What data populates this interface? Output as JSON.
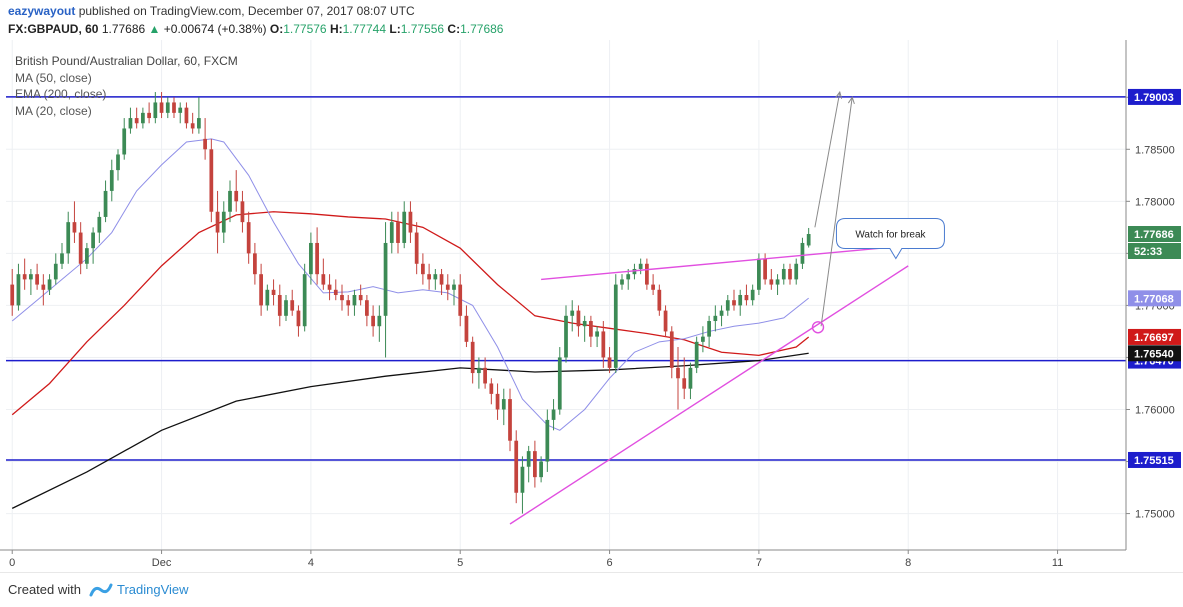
{
  "header": {
    "user": "eazywayout",
    "published": "published on TradingView.com, December 07, 2017 08:07 UTC",
    "symbol": "FX:GBPAUD, 60",
    "last": "1.77686",
    "change": "+0.00674 (+0.38%)",
    "o_label": "O:",
    "o_value": "1.77576",
    "h_label": "H:",
    "h_value": "1.77744",
    "l_label": "L:",
    "l_value": "1.77556",
    "c_label": "C:",
    "c_value": "1.77686"
  },
  "legend": {
    "title": "British Pound/Australian Dollar, 60, FXCM",
    "items": [
      "MA (50, close)",
      "EMA (200, close)",
      "MA (20, close)"
    ]
  },
  "annotation": {
    "label": "Watch for break"
  },
  "price_badges": {
    "current": "1.77686",
    "countdown": "52:33",
    "ma20": "1.77068",
    "ma50": "1.76697",
    "ema200": "1.76540"
  },
  "footer": {
    "created_with": "Created with",
    "brand": "TradingView"
  },
  "colors": {
    "up": "#3c8a55",
    "down": "#c4433d",
    "ma20": "#8f8fe8",
    "ma50": "#d01a1a",
    "ema200": "#111111",
    "hline": "#1d1dcc",
    "trend": "#e14fe0"
  },
  "chart_data": {
    "type": "candlestick",
    "ylim": [
      1.7465,
      1.7955
    ],
    "x_ticks": [
      {
        "label": "0",
        "x": 0
      },
      {
        "label": "Dec",
        "x": 24
      },
      {
        "label": "4",
        "x": 48
      },
      {
        "label": "5",
        "x": 72
      },
      {
        "label": "6",
        "x": 96
      },
      {
        "label": "7",
        "x": 120
      },
      {
        "label": "8",
        "x": 144
      },
      {
        "label": "11",
        "x": 168
      }
    ],
    "x_range": [
      -1,
      179
    ],
    "y_ticks": [
      "1.75000",
      "1.75500",
      "1.76000",
      "1.76500",
      "1.77000",
      "1.77500",
      "1.78000",
      "1.78500",
      "1.79000"
    ],
    "y_tick_values": [
      1.75,
      1.755,
      1.76,
      1.765,
      1.77,
      1.775,
      1.78,
      1.785,
      1.79
    ],
    "horizontal_levels": [
      {
        "value": 1.79003,
        "label": "1.79003"
      },
      {
        "value": 1.7647,
        "label": "1.76470"
      },
      {
        "value": 1.75515,
        "label": "1.75515"
      }
    ],
    "candles": [
      [
        0,
        1.772,
        1.7735,
        1.769,
        1.77
      ],
      [
        1,
        1.77,
        1.774,
        1.7695,
        1.773
      ],
      [
        2,
        1.773,
        1.7745,
        1.7715,
        1.7725
      ],
      [
        3,
        1.7725,
        1.7735,
        1.771,
        1.773
      ],
      [
        4,
        1.773,
        1.774,
        1.7715,
        1.772
      ],
      [
        5,
        1.772,
        1.773,
        1.77,
        1.7715
      ],
      [
        6,
        1.7715,
        1.773,
        1.771,
        1.7725
      ],
      [
        7,
        1.7725,
        1.775,
        1.772,
        1.774
      ],
      [
        8,
        1.774,
        1.776,
        1.7735,
        1.775
      ],
      [
        9,
        1.775,
        1.779,
        1.774,
        1.778
      ],
      [
        10,
        1.778,
        1.78,
        1.776,
        1.777
      ],
      [
        11,
        1.777,
        1.778,
        1.773,
        1.774
      ],
      [
        12,
        1.774,
        1.776,
        1.7735,
        1.7755
      ],
      [
        13,
        1.7755,
        1.7775,
        1.774,
        1.777
      ],
      [
        14,
        1.777,
        1.779,
        1.776,
        1.7785
      ],
      [
        15,
        1.7785,
        1.782,
        1.778,
        1.781
      ],
      [
        16,
        1.781,
        1.784,
        1.78,
        1.783
      ],
      [
        17,
        1.783,
        1.785,
        1.782,
        1.7845
      ],
      [
        18,
        1.7845,
        1.788,
        1.784,
        1.787
      ],
      [
        19,
        1.787,
        1.789,
        1.7865,
        1.788
      ],
      [
        20,
        1.788,
        1.789,
        1.787,
        1.7875
      ],
      [
        21,
        1.7875,
        1.789,
        1.787,
        1.7885
      ],
      [
        22,
        1.7885,
        1.7895,
        1.7875,
        1.788
      ],
      [
        23,
        1.788,
        1.7905,
        1.7875,
        1.7895
      ],
      [
        24,
        1.7895,
        1.7905,
        1.788,
        1.7885
      ],
      [
        25,
        1.7885,
        1.79,
        1.788,
        1.7895
      ],
      [
        26,
        1.7895,
        1.79,
        1.788,
        1.7885
      ],
      [
        27,
        1.7885,
        1.7895,
        1.7875,
        1.789
      ],
      [
        28,
        1.789,
        1.7895,
        1.787,
        1.7875
      ],
      [
        29,
        1.7875,
        1.7885,
        1.7865,
        1.787
      ],
      [
        30,
        1.787,
        1.79,
        1.7865,
        1.788
      ],
      [
        31,
        1.786,
        1.788,
        1.784,
        1.785
      ],
      [
        32,
        1.785,
        1.786,
        1.778,
        1.779
      ],
      [
        33,
        1.779,
        1.781,
        1.775,
        1.777
      ],
      [
        34,
        1.777,
        1.78,
        1.776,
        1.779
      ],
      [
        35,
        1.779,
        1.782,
        1.778,
        1.781
      ],
      [
        36,
        1.781,
        1.783,
        1.779,
        1.78
      ],
      [
        37,
        1.78,
        1.781,
        1.777,
        1.778
      ],
      [
        38,
        1.778,
        1.779,
        1.774,
        1.775
      ],
      [
        39,
        1.775,
        1.776,
        1.772,
        1.773
      ],
      [
        40,
        1.773,
        1.774,
        1.769,
        1.77
      ],
      [
        41,
        1.77,
        1.772,
        1.7695,
        1.7715
      ],
      [
        42,
        1.7715,
        1.7725,
        1.77,
        1.771
      ],
      [
        43,
        1.771,
        1.772,
        1.768,
        1.769
      ],
      [
        44,
        1.769,
        1.771,
        1.7685,
        1.7705
      ],
      [
        45,
        1.7705,
        1.7715,
        1.769,
        1.7695
      ],
      [
        46,
        1.7695,
        1.77,
        1.767,
        1.768
      ],
      [
        47,
        1.768,
        1.774,
        1.7675,
        1.773
      ],
      [
        48,
        1.773,
        1.777,
        1.772,
        1.776
      ],
      [
        49,
        1.776,
        1.7775,
        1.772,
        1.773
      ],
      [
        50,
        1.773,
        1.7745,
        1.7715,
        1.772
      ],
      [
        51,
        1.772,
        1.773,
        1.7705,
        1.7715
      ],
      [
        52,
        1.7715,
        1.7725,
        1.7705,
        1.771
      ],
      [
        53,
        1.771,
        1.772,
        1.7695,
        1.7705
      ],
      [
        54,
        1.7705,
        1.771,
        1.769,
        1.77
      ],
      [
        55,
        1.77,
        1.7715,
        1.769,
        1.771
      ],
      [
        56,
        1.771,
        1.772,
        1.77,
        1.7705
      ],
      [
        57,
        1.7705,
        1.771,
        1.768,
        1.769
      ],
      [
        58,
        1.769,
        1.77,
        1.767,
        1.768
      ],
      [
        59,
        1.768,
        1.77,
        1.7665,
        1.769
      ],
      [
        60,
        1.769,
        1.778,
        1.765,
        1.776
      ],
      [
        61,
        1.776,
        1.779,
        1.775,
        1.778
      ],
      [
        62,
        1.778,
        1.779,
        1.775,
        1.776
      ],
      [
        63,
        1.776,
        1.78,
        1.7755,
        1.779
      ],
      [
        64,
        1.779,
        1.78,
        1.776,
        1.777
      ],
      [
        65,
        1.777,
        1.778,
        1.773,
        1.774
      ],
      [
        66,
        1.774,
        1.775,
        1.772,
        1.773
      ],
      [
        67,
        1.773,
        1.774,
        1.7715,
        1.7725
      ],
      [
        68,
        1.7725,
        1.7735,
        1.7715,
        1.773
      ],
      [
        69,
        1.773,
        1.7735,
        1.771,
        1.772
      ],
      [
        70,
        1.772,
        1.773,
        1.7705,
        1.7715
      ],
      [
        71,
        1.7715,
        1.7725,
        1.77,
        1.772
      ],
      [
        72,
        1.772,
        1.773,
        1.768,
        1.769
      ],
      [
        73,
        1.769,
        1.77,
        1.766,
        1.7665
      ],
      [
        74,
        1.7665,
        1.767,
        1.7625,
        1.7635
      ],
      [
        75,
        1.7635,
        1.765,
        1.762,
        1.764
      ],
      [
        76,
        1.764,
        1.765,
        1.762,
        1.7625
      ],
      [
        77,
        1.7625,
        1.763,
        1.7605,
        1.7615
      ],
      [
        78,
        1.7615,
        1.7625,
        1.759,
        1.76
      ],
      [
        79,
        1.76,
        1.762,
        1.7585,
        1.761
      ],
      [
        80,
        1.761,
        1.762,
        1.756,
        1.757
      ],
      [
        81,
        1.757,
        1.758,
        1.751,
        1.752
      ],
      [
        82,
        1.752,
        1.7555,
        1.75,
        1.7545
      ],
      [
        83,
        1.7545,
        1.7565,
        1.753,
        1.756
      ],
      [
        84,
        1.756,
        1.757,
        1.7525,
        1.7535
      ],
      [
        85,
        1.7535,
        1.7555,
        1.753,
        1.755
      ],
      [
        86,
        1.755,
        1.76,
        1.754,
        1.759
      ],
      [
        87,
        1.759,
        1.761,
        1.758,
        1.76
      ],
      [
        88,
        1.76,
        1.766,
        1.7595,
        1.765
      ],
      [
        89,
        1.765,
        1.77,
        1.7645,
        1.769
      ],
      [
        90,
        1.769,
        1.7705,
        1.7675,
        1.7695
      ],
      [
        91,
        1.7695,
        1.77,
        1.767,
        1.768
      ],
      [
        92,
        1.768,
        1.769,
        1.7665,
        1.7685
      ],
      [
        93,
        1.7685,
        1.769,
        1.766,
        1.767
      ],
      [
        94,
        1.767,
        1.768,
        1.766,
        1.7675
      ],
      [
        95,
        1.7675,
        1.7685,
        1.764,
        1.765
      ],
      [
        96,
        1.765,
        1.766,
        1.7635,
        1.764
      ],
      [
        97,
        1.764,
        1.773,
        1.7635,
        1.772
      ],
      [
        98,
        1.772,
        1.773,
        1.7715,
        1.7725
      ],
      [
        99,
        1.7725,
        1.7735,
        1.7715,
        1.773
      ],
      [
        100,
        1.773,
        1.774,
        1.7725,
        1.7735
      ],
      [
        101,
        1.7735,
        1.7745,
        1.773,
        1.774
      ],
      [
        102,
        1.774,
        1.7745,
        1.7715,
        1.772
      ],
      [
        103,
        1.772,
        1.773,
        1.771,
        1.7715
      ],
      [
        104,
        1.7715,
        1.772,
        1.769,
        1.7695
      ],
      [
        105,
        1.7695,
        1.77,
        1.767,
        1.7675
      ],
      [
        106,
        1.7675,
        1.768,
        1.763,
        1.764
      ],
      [
        107,
        1.764,
        1.766,
        1.76,
        1.763
      ],
      [
        108,
        1.763,
        1.765,
        1.761,
        1.762
      ],
      [
        109,
        1.762,
        1.7645,
        1.761,
        1.764
      ],
      [
        110,
        1.764,
        1.767,
        1.7635,
        1.7665
      ],
      [
        111,
        1.7665,
        1.768,
        1.7655,
        1.767
      ],
      [
        112,
        1.767,
        1.769,
        1.766,
        1.7685
      ],
      [
        113,
        1.7685,
        1.77,
        1.7675,
        1.769
      ],
      [
        114,
        1.769,
        1.77,
        1.768,
        1.7695
      ],
      [
        115,
        1.7695,
        1.771,
        1.769,
        1.7705
      ],
      [
        116,
        1.7705,
        1.7715,
        1.7695,
        1.77
      ],
      [
        117,
        1.77,
        1.7715,
        1.769,
        1.771
      ],
      [
        118,
        1.771,
        1.772,
        1.77,
        1.7705
      ],
      [
        119,
        1.7705,
        1.772,
        1.77,
        1.7715
      ],
      [
        120,
        1.7715,
        1.775,
        1.771,
        1.7745
      ],
      [
        121,
        1.7745,
        1.775,
        1.772,
        1.7725
      ],
      [
        122,
        1.7725,
        1.7735,
        1.7715,
        1.772
      ],
      [
        123,
        1.772,
        1.773,
        1.771,
        1.7725
      ],
      [
        124,
        1.7725,
        1.774,
        1.772,
        1.7735
      ],
      [
        125,
        1.7735,
        1.774,
        1.772,
        1.7725
      ],
      [
        126,
        1.7725,
        1.7745,
        1.772,
        1.774
      ],
      [
        127,
        1.774,
        1.7765,
        1.7735,
        1.776
      ],
      [
        128,
        1.77576,
        1.77744,
        1.77556,
        1.77686
      ]
    ],
    "ma50": [
      [
        0,
        1.7595
      ],
      [
        6,
        1.7625
      ],
      [
        12,
        1.7665
      ],
      [
        18,
        1.77
      ],
      [
        24,
        1.7738
      ],
      [
        30,
        1.777
      ],
      [
        36,
        1.7787
      ],
      [
        42,
        1.779
      ],
      [
        48,
        1.7788
      ],
      [
        54,
        1.7785
      ],
      [
        60,
        1.7783
      ],
      [
        66,
        1.7775
      ],
      [
        72,
        1.7755
      ],
      [
        78,
        1.772
      ],
      [
        84,
        1.769
      ],
      [
        90,
        1.7683
      ],
      [
        96,
        1.7678
      ],
      [
        102,
        1.7673
      ],
      [
        108,
        1.7667
      ],
      [
        114,
        1.7655
      ],
      [
        120,
        1.7652
      ],
      [
        126,
        1.766
      ],
      [
        128,
        1.76697
      ]
    ],
    "ema200": [
      [
        0,
        1.7505
      ],
      [
        12,
        1.754
      ],
      [
        24,
        1.758
      ],
      [
        36,
        1.7608
      ],
      [
        48,
        1.7622
      ],
      [
        60,
        1.7632
      ],
      [
        72,
        1.764
      ],
      [
        84,
        1.7636
      ],
      [
        96,
        1.7638
      ],
      [
        108,
        1.7642
      ],
      [
        120,
        1.7647
      ],
      [
        128,
        1.7654
      ]
    ],
    "ma20": [
      [
        0,
        1.7685
      ],
      [
        4,
        1.7705
      ],
      [
        8,
        1.7725
      ],
      [
        12,
        1.7745
      ],
      [
        16,
        1.777
      ],
      [
        20,
        1.781
      ],
      [
        24,
        1.7835
      ],
      [
        28,
        1.7857
      ],
      [
        32,
        1.786
      ],
      [
        34,
        1.7857
      ],
      [
        38,
        1.7825
      ],
      [
        42,
        1.778
      ],
      [
        46,
        1.774
      ],
      [
        50,
        1.7712
      ],
      [
        54,
        1.7713
      ],
      [
        58,
        1.7718
      ],
      [
        62,
        1.7712
      ],
      [
        66,
        1.7715
      ],
      [
        70,
        1.7712
      ],
      [
        74,
        1.77
      ],
      [
        78,
        1.766
      ],
      [
        82,
        1.761
      ],
      [
        86,
        1.7585
      ],
      [
        88,
        1.758
      ],
      [
        92,
        1.76
      ],
      [
        96,
        1.763
      ],
      [
        100,
        1.7655
      ],
      [
        104,
        1.7665
      ],
      [
        108,
        1.7668
      ],
      [
        112,
        1.7675
      ],
      [
        116,
        1.768
      ],
      [
        120,
        1.7683
      ],
      [
        124,
        1.7688
      ],
      [
        128,
        1.7707
      ]
    ],
    "trendlines": [
      {
        "name": "resistance",
        "points": [
          [
            85,
            1.7725
          ],
          [
            145,
            1.7758
          ]
        ]
      },
      {
        "name": "support",
        "points": [
          [
            80,
            1.749
          ],
          [
            144,
            1.7738
          ]
        ]
      }
    ],
    "projection_arrows": [
      {
        "from": [
          129,
          1.7775
        ],
        "to": [
          133,
          1.7905
        ]
      },
      {
        "from": [
          130,
          1.768
        ],
        "to": [
          135,
          1.79
        ]
      }
    ],
    "breakout_marker": [
      129.5,
      1.7679
    ],
    "callout_anchor": [
      131.5,
      1.777
    ]
  }
}
